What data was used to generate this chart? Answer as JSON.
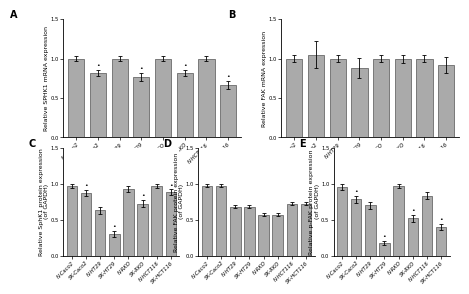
{
  "categories": [
    "N-Caco2",
    "SK-Caco2",
    "N-HT29",
    "SK-HT29",
    "N-RKO",
    "SK-RKO",
    "N-HCT116",
    "SK-HCT116"
  ],
  "panel_A": {
    "label": "A",
    "ylabel": "Relative SPHK1 mRNA expression",
    "values": [
      1.0,
      0.82,
      1.0,
      0.77,
      1.0,
      0.82,
      1.0,
      0.67
    ],
    "errors": [
      0.03,
      0.04,
      0.03,
      0.05,
      0.03,
      0.04,
      0.03,
      0.05
    ],
    "stars": [
      false,
      true,
      false,
      true,
      false,
      true,
      false,
      true
    ]
  },
  "panel_B": {
    "label": "B",
    "ylabel": "Relative FAK mRNA expression",
    "values": [
      1.0,
      1.05,
      1.0,
      0.88,
      1.0,
      1.0,
      1.0,
      0.92
    ],
    "errors": [
      0.04,
      0.17,
      0.04,
      0.13,
      0.04,
      0.05,
      0.04,
      0.1
    ],
    "stars": [
      false,
      false,
      false,
      false,
      false,
      false,
      false,
      false
    ]
  },
  "panel_C": {
    "label": "C",
    "ylabel": "Relative SphK1 protein expression\n(of GAPDH)",
    "values": [
      0.97,
      0.87,
      0.63,
      0.3,
      0.93,
      0.72,
      0.97,
      0.88
    ],
    "errors": [
      0.03,
      0.04,
      0.05,
      0.04,
      0.04,
      0.05,
      0.03,
      0.04
    ],
    "stars": [
      false,
      true,
      false,
      true,
      false,
      true,
      false,
      true
    ]
  },
  "panel_D": {
    "label": "D",
    "ylabel": "Relative FAK protein expression\n(of GAPDH)",
    "values": [
      0.97,
      0.97,
      0.68,
      0.68,
      0.57,
      0.57,
      0.72,
      0.72
    ],
    "errors": [
      0.02,
      0.02,
      0.02,
      0.02,
      0.02,
      0.02,
      0.02,
      0.02
    ],
    "stars": [
      false,
      false,
      false,
      false,
      false,
      false,
      false,
      false
    ]
  },
  "panel_E": {
    "label": "E",
    "ylabel": "Relative p-FAK protein expression\n(of GAPDH)",
    "values": [
      0.95,
      0.78,
      0.7,
      0.18,
      0.97,
      0.52,
      0.83,
      0.4
    ],
    "errors": [
      0.04,
      0.05,
      0.05,
      0.03,
      0.03,
      0.05,
      0.05,
      0.04
    ],
    "stars": [
      false,
      true,
      false,
      true,
      false,
      true,
      false,
      true
    ]
  },
  "bar_color": "#aaaaaa",
  "bar_edge_color": "#555555",
  "ylim": [
    0,
    1.5
  ],
  "yticks": [
    0.0,
    0.5,
    1.0,
    1.5
  ],
  "background_color": "#ffffff"
}
